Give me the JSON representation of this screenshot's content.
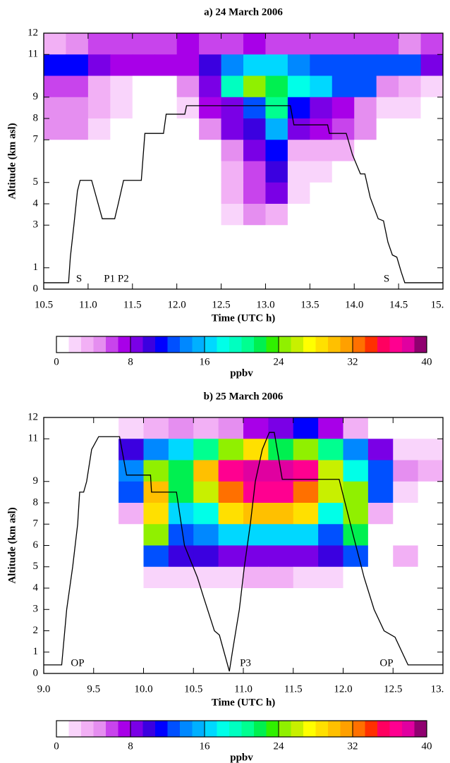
{
  "chart_data": [
    {
      "type": "heatmap",
      "title": "a) 24 March 2006",
      "xlabel": "Time (UTC h)",
      "ylabel": "Altitude (km asl)",
      "xlim": [
        10.5,
        15.0
      ],
      "ylim": [
        0,
        12
      ],
      "xticks": [
        {
          "value": 10.5,
          "label": "10.5"
        },
        {
          "value": 11,
          "label": "11.0"
        },
        {
          "value": 11.5,
          "label": "11.5"
        },
        {
          "value": 12,
          "label": "12.0"
        },
        {
          "value": 12.5,
          "label": "12.5"
        },
        {
          "value": 13,
          "label": "13.0"
        },
        {
          "value": 13.5,
          "label": "13.5"
        },
        {
          "value": 14,
          "label": "14.0"
        },
        {
          "value": 14.5,
          "label": "14.5"
        },
        {
          "value": 15,
          "label": "15."
        }
      ],
      "yticks": [
        0,
        1,
        3,
        4,
        5,
        7,
        8,
        9,
        11,
        12
      ],
      "x": [
        10.625,
        10.875,
        11.125,
        11.375,
        11.625,
        11.875,
        12.125,
        12.375,
        12.625,
        12.875,
        13.125,
        13.375,
        13.625,
        13.875,
        14.125,
        14.375,
        14.625,
        14.875
      ],
      "y": [
        11.5,
        10.5,
        9.5,
        8.5,
        7.5,
        6.5,
        5.5,
        4.5,
        3.5,
        2.5,
        1.5,
        0.5
      ],
      "z": [
        [
          3,
          4,
          6,
          6,
          6,
          6,
          7,
          6,
          6,
          7,
          6,
          6,
          6,
          6,
          6,
          6,
          5,
          6
        ],
        [
          11,
          11,
          9,
          7,
          7,
          7,
          7,
          10,
          14,
          17,
          16,
          14,
          12,
          12,
          12,
          12,
          12,
          9
        ],
        [
          6,
          6,
          3,
          2,
          1,
          1,
          4,
          8,
          19,
          25,
          22,
          18,
          16,
          12,
          12,
          4,
          3,
          2
        ],
        [
          5,
          5,
          3,
          2,
          1,
          1,
          2,
          7,
          9,
          12,
          20,
          11,
          9,
          7,
          4,
          2,
          2,
          1
        ],
        [
          5,
          4,
          2,
          1,
          1,
          1,
          1,
          4,
          8,
          10,
          15,
          9,
          7,
          6,
          4,
          1,
          0,
          0
        ],
        [
          0,
          0,
          0,
          0,
          0,
          0,
          0,
          1,
          5,
          8,
          11,
          3,
          3,
          3,
          1,
          0,
          0,
          0
        ],
        [
          0,
          0,
          0,
          0,
          0,
          0,
          0,
          0,
          3,
          6,
          10,
          2,
          2,
          1,
          0,
          0,
          0,
          0
        ],
        [
          0,
          0,
          0,
          0,
          0,
          0,
          0,
          0,
          3,
          6,
          8,
          2,
          1,
          0,
          0,
          0,
          0,
          0
        ],
        [
          0,
          0,
          0,
          0,
          0,
          0,
          0,
          0,
          2,
          4,
          3,
          0,
          0,
          0,
          0,
          0,
          0,
          0
        ],
        [
          0,
          0,
          0,
          0,
          0,
          0,
          0,
          0,
          0,
          1,
          0,
          0,
          0,
          0,
          0,
          0,
          0,
          0
        ],
        [
          0,
          0,
          0,
          0,
          0,
          0,
          0,
          0,
          0,
          0,
          0,
          0,
          0,
          0,
          0,
          0,
          0,
          0
        ],
        [
          0,
          0,
          0,
          0,
          0,
          0,
          0,
          0,
          0,
          0,
          0,
          0,
          0,
          0,
          0,
          0,
          0,
          0
        ]
      ],
      "track": {
        "color": "#000000",
        "x": [
          10.5,
          10.78,
          10.8,
          10.84,
          10.88,
          10.91,
          11.04,
          11.08,
          11.16,
          11.3,
          11.34,
          11.4,
          11.6,
          11.62,
          11.64,
          11.85,
          11.88,
          12.09,
          12.11,
          13.28,
          13.32,
          13.7,
          13.72,
          13.91,
          13.98,
          14.07,
          14.12,
          14.18,
          14.27,
          14.33,
          14.38,
          14.43,
          14.48,
          14.53,
          14.57,
          15.0
        ],
        "values": [
          0.3,
          0.3,
          1.5,
          3.0,
          4.6,
          5.1,
          5.1,
          4.5,
          3.3,
          3.3,
          4.0,
          5.1,
          5.1,
          6.2,
          7.3,
          7.3,
          8.2,
          8.2,
          8.6,
          8.6,
          7.7,
          7.7,
          7.3,
          7.3,
          6.3,
          5.4,
          5.4,
          4.3,
          3.3,
          3.2,
          2.2,
          1.6,
          1.5,
          0.8,
          0.3,
          0.3
        ]
      },
      "annotations": [
        "S",
        "P1 P2",
        "S"
      ],
      "colorbar": {
        "label": "ppbv",
        "lim": [
          0,
          40
        ],
        "ticks": [
          0,
          8,
          16,
          24,
          32,
          40
        ]
      }
    },
    {
      "type": "heatmap",
      "title": "b) 25 March 2006",
      "xlabel": "Time (UTC h)",
      "ylabel": "Altitude (km asl)",
      "xlim": [
        9.0,
        13.0
      ],
      "ylim": [
        0,
        12
      ],
      "xticks": [
        {
          "value": 9,
          "label": "9.0"
        },
        {
          "value": 9.5,
          "label": "9.5"
        },
        {
          "value": 10,
          "label": "10.0"
        },
        {
          "value": 10.5,
          "label": "10.5"
        },
        {
          "value": 11,
          "label": "11.0"
        },
        {
          "value": 11.5,
          "label": "11.5"
        },
        {
          "value": 12,
          "label": "12.0"
        },
        {
          "value": 12.5,
          "label": "12.5"
        },
        {
          "value": 13,
          "label": "13."
        }
      ],
      "yticks": [
        0,
        1,
        2,
        3,
        4,
        5,
        6,
        7,
        8,
        9,
        11,
        12
      ],
      "x": [
        9.125,
        9.375,
        9.625,
        9.875,
        10.125,
        10.375,
        10.625,
        10.875,
        11.125,
        11.375,
        11.625,
        11.875,
        12.125,
        12.375,
        12.625,
        12.875
      ],
      "y": [
        11.5,
        10.5,
        9.5,
        8.5,
        7.5,
        6.5,
        5.5,
        4.5,
        3.5,
        2.5,
        1.5,
        0.5
      ],
      "z": [
        [
          0,
          0,
          0,
          2,
          3,
          4,
          3,
          4,
          7,
          8,
          11,
          7,
          3,
          1,
          0,
          0
        ],
        [
          0,
          0,
          0,
          10,
          14,
          17,
          20,
          24,
          28,
          22,
          24,
          20,
          14,
          9,
          2,
          2
        ],
        [
          0,
          0,
          0,
          14,
          25,
          22,
          30,
          36,
          38,
          38,
          36,
          26,
          18,
          12,
          4,
          3
        ],
        [
          0,
          0,
          0,
          12,
          30,
          22,
          26,
          33,
          36,
          36,
          33,
          26,
          24,
          12,
          2,
          1
        ],
        [
          0,
          0,
          0,
          3,
          28,
          17,
          18,
          28,
          30,
          30,
          28,
          18,
          25,
          3,
          0,
          0
        ],
        [
          0,
          0,
          0,
          1,
          25,
          13,
          14,
          16,
          16,
          16,
          16,
          13,
          22,
          1,
          0,
          0
        ],
        [
          0,
          0,
          0,
          1,
          12,
          10,
          10,
          9,
          8,
          8,
          9,
          10,
          12,
          1,
          3,
          0
        ],
        [
          0,
          0,
          0,
          0,
          2,
          2,
          2,
          2,
          3,
          3,
          2,
          2,
          1,
          0,
          0,
          0
        ],
        [
          0,
          0,
          0,
          0,
          0,
          1,
          0,
          0,
          0,
          1,
          0,
          0,
          0,
          0,
          0,
          0
        ],
        [
          0,
          0,
          0,
          0,
          0,
          0,
          0,
          0,
          0,
          0,
          0,
          0,
          0,
          0,
          0,
          0
        ],
        [
          0,
          0,
          0,
          0,
          0,
          0,
          0,
          0,
          0,
          0,
          0,
          0,
          0,
          0,
          0,
          0
        ],
        [
          0,
          0,
          0,
          0,
          0,
          0,
          0,
          0,
          0,
          0,
          0,
          0,
          0,
          0,
          0,
          0
        ]
      ],
      "track": {
        "color": "#000000",
        "x": [
          9.0,
          9.18,
          9.23,
          9.29,
          9.34,
          9.36,
          9.4,
          9.43,
          9.48,
          9.55,
          9.76,
          9.83,
          10.07,
          10.08,
          10.33,
          10.41,
          10.54,
          10.6,
          10.71,
          10.76,
          10.86,
          10.89,
          10.96,
          11.01,
          11.07,
          11.12,
          11.19,
          11.26,
          11.31,
          11.39,
          11.96,
          12.1,
          12.21,
          12.31,
          12.41,
          12.52,
          12.65,
          13.0
        ],
        "values": [
          0.4,
          0.4,
          3.0,
          5.0,
          7.0,
          8.5,
          8.5,
          9.0,
          10.5,
          11.1,
          11.1,
          9.3,
          9.3,
          8.5,
          8.5,
          6.0,
          4.5,
          3.6,
          2.0,
          1.8,
          0.1,
          1.0,
          3.0,
          5.0,
          7.0,
          9.0,
          10.5,
          11.3,
          11.3,
          9.1,
          9.1,
          6.5,
          4.5,
          3.0,
          2.0,
          1.7,
          0.4,
          0.4
        ]
      },
      "annotations": [
        "OP",
        "P3",
        "OP"
      ],
      "colorbar": {
        "label": "ppbv",
        "lim": [
          0,
          40
        ],
        "ticks": [
          0,
          8,
          16,
          24,
          32,
          40
        ]
      }
    }
  ]
}
